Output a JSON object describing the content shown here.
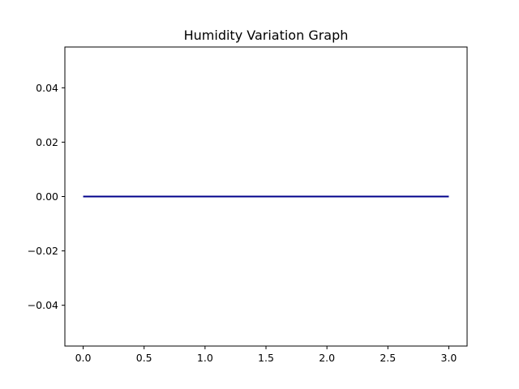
{
  "chart_data": {
    "type": "line",
    "title": "Humidity Variation Graph",
    "xlabel": "",
    "ylabel": "",
    "xlim": [
      -0.15,
      3.15
    ],
    "ylim": [
      -0.055,
      0.055
    ],
    "x_ticks": [
      0.0,
      0.5,
      1.0,
      1.5,
      2.0,
      2.5,
      3.0
    ],
    "x_tick_labels": [
      "0.0",
      "0.5",
      "1.0",
      "1.5",
      "2.0",
      "2.5",
      "3.0"
    ],
    "y_ticks": [
      -0.04,
      -0.02,
      0.0,
      0.02,
      0.04
    ],
    "y_tick_labels": [
      "−0.04",
      "−0.02",
      "0.00",
      "0.02",
      "0.04"
    ],
    "grid": false,
    "series": [
      {
        "color": "#00008b",
        "x": [
          0,
          1,
          2,
          3
        ],
        "y": [
          0,
          0,
          0,
          0
        ]
      }
    ]
  }
}
